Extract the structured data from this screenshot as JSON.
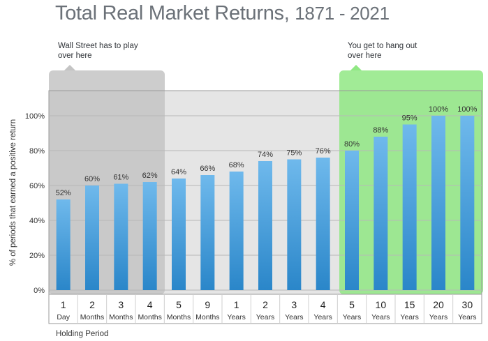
{
  "title_main": "Total Real Market Returns,",
  "title_years": "1871 - 2021",
  "callouts": {
    "left": [
      "Wall Street has to play",
      "over here"
    ],
    "right": [
      "You get to hang out",
      "over here"
    ]
  },
  "colors": {
    "bar_top": "#6fb9ec",
    "bar_bottom": "#2a86c9",
    "left_zone": "#c4c4c4",
    "right_zone": "#90e884",
    "plot_bg": "#e5e5e5"
  },
  "chart_data": {
    "type": "bar",
    "ylabel": "% of periods that earned a positive return",
    "xlabel": "Holding Period",
    "ylim": [
      0,
      100
    ],
    "yticks": [
      "0%",
      "20%",
      "40%",
      "60%",
      "80%",
      "100%"
    ],
    "grid": true,
    "categories": [
      {
        "num": "1",
        "unit": "Day"
      },
      {
        "num": "2",
        "unit": "Months"
      },
      {
        "num": "3",
        "unit": "Months"
      },
      {
        "num": "4",
        "unit": "Months"
      },
      {
        "num": "5",
        "unit": "Months"
      },
      {
        "num": "9",
        "unit": "Months"
      },
      {
        "num": "1",
        "unit": "Years"
      },
      {
        "num": "2",
        "unit": "Years"
      },
      {
        "num": "3",
        "unit": "Years"
      },
      {
        "num": "4",
        "unit": "Years"
      },
      {
        "num": "5",
        "unit": "Years"
      },
      {
        "num": "10",
        "unit": "Years"
      },
      {
        "num": "15",
        "unit": "Years"
      },
      {
        "num": "20",
        "unit": "Years"
      },
      {
        "num": "30",
        "unit": "Years"
      }
    ],
    "values": [
      52,
      60,
      61,
      62,
      64,
      66,
      68,
      74,
      75,
      76,
      80,
      88,
      95,
      100,
      100
    ],
    "labels": [
      "52%",
      "60%",
      "61%",
      "62%",
      "64%",
      "66%",
      "68%",
      "74%",
      "75%",
      "76%",
      "80%",
      "88%",
      "95%",
      "100%",
      "100%"
    ]
  }
}
